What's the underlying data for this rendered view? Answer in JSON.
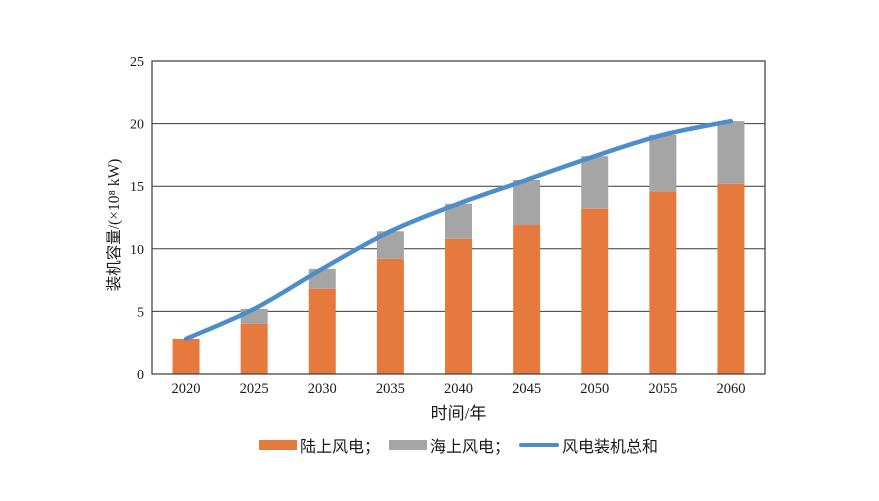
{
  "figure": {
    "background": "#ffffff"
  },
  "chart_data": {
    "type": "bar",
    "subtype": "stacked-bar-with-line",
    "categories": [
      "2020",
      "2025",
      "2030",
      "2035",
      "2040",
      "2045",
      "2050",
      "2055",
      "2060"
    ],
    "series": [
      {
        "name": "陆上风电",
        "kind": "bar",
        "color": "#E6793D",
        "values": [
          2.8,
          4.0,
          6.8,
          9.2,
          10.8,
          11.9,
          13.2,
          14.6,
          15.2
        ]
      },
      {
        "name": "海上风电",
        "kind": "bar",
        "color": "#A5A5A5",
        "values": [
          0,
          1.2,
          1.6,
          2.2,
          2.8,
          3.6,
          4.2,
          4.5,
          5.0
        ]
      },
      {
        "name": "风电装机总和",
        "kind": "line",
        "color": "#4E8DC9",
        "values": [
          2.8,
          5.2,
          8.4,
          11.4,
          13.6,
          15.5,
          17.4,
          19.1,
          20.2
        ]
      }
    ],
    "stacked": true,
    "title": "",
    "xlabel": "时间/年",
    "ylabel": "装机容量/(×10⁸ kW)",
    "ylim": [
      0,
      25
    ],
    "yticks": [
      0,
      5,
      10,
      15,
      20,
      25
    ],
    "grid": true,
    "grid_color": "#3a3a3a",
    "frame": true,
    "legend_position": "bottom"
  },
  "legend": {
    "items": [
      {
        "label": "陆上风电；",
        "swatch": "rect",
        "color": "#E6793D"
      },
      {
        "label": "海上风电；",
        "swatch": "rect",
        "color": "#A5A5A5"
      },
      {
        "label": "风电装机总和",
        "swatch": "line",
        "color": "#4E8DC9"
      }
    ]
  }
}
